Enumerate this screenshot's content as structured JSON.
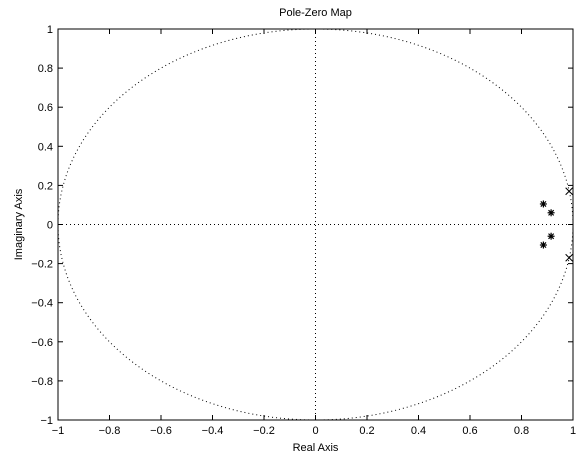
{
  "chart_data": {
    "type": "scatter",
    "title": "Pole-Zero Map",
    "xlabel": "Real Axis",
    "ylabel": "Imaginary Axis",
    "xlim": [
      -1,
      1
    ],
    "ylim": [
      -1,
      1
    ],
    "x_ticks": [
      "−1",
      "−0.8",
      "−0.6",
      "−0.4",
      "−0.2",
      "0",
      "0.2",
      "0.4",
      "0.6",
      "0.8",
      "1"
    ],
    "y_ticks": [
      "−1",
      "−0.8",
      "−0.6",
      "−0.4",
      "−0.2",
      "0",
      "0.2",
      "0.4",
      "0.6",
      "0.8",
      "1"
    ],
    "x_tick_values": [
      -1,
      -0.8,
      -0.6,
      -0.4,
      -0.2,
      0,
      0.2,
      0.4,
      0.6,
      0.8,
      1
    ],
    "y_tick_values": [
      -1,
      -0.8,
      -0.6,
      -0.4,
      -0.2,
      0,
      0.2,
      0.4,
      0.6,
      0.8,
      1
    ],
    "grid": false,
    "unit_circle": true,
    "reference_lines": [
      "x=0",
      "y=0"
    ],
    "series": [
      {
        "marker": "x",
        "points": [
          {
            "x": 0.985,
            "y": 0.17
          },
          {
            "x": 0.985,
            "y": -0.17
          }
        ]
      },
      {
        "marker": "*",
        "points": [
          {
            "x": 0.885,
            "y": 0.105
          },
          {
            "x": 0.885,
            "y": -0.105
          },
          {
            "x": 0.915,
            "y": 0.06
          },
          {
            "x": 0.915,
            "y": -0.06
          }
        ]
      }
    ],
    "colors": {
      "axes": "#000000",
      "markers": "#000000",
      "dotted": "#000000",
      "background": "#ffffff"
    }
  }
}
